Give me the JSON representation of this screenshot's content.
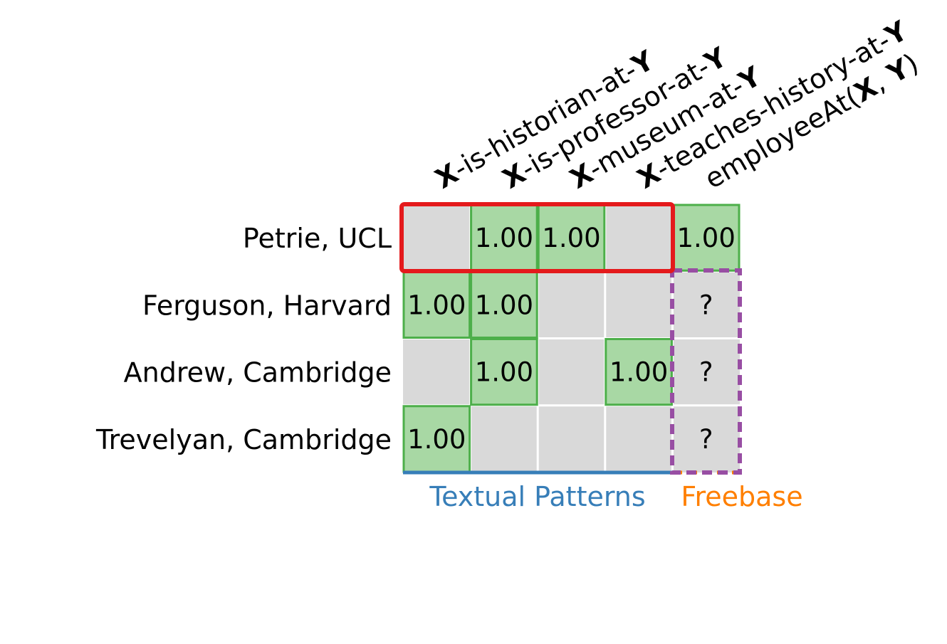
{
  "rows": [
    "Petrie, UCL",
    "Ferguson, Harvard",
    "Andrew, Cambridge",
    "Trevelyan, Cambridge"
  ],
  "columns": [
    {
      "x": "X",
      "rest": "-is-historian-at-",
      "y": "Y"
    },
    {
      "x": "X",
      "rest": "-is-professor-at-",
      "y": "Y"
    },
    {
      "x": "X",
      "rest": "-museum-at-",
      "y": "Y"
    },
    {
      "x": "X",
      "rest": "-teaches-history-at-",
      "y": "Y"
    },
    {
      "pre": "employeeAt(",
      "x": "X",
      "mid": ", ",
      "y": "Y",
      "post": ")"
    }
  ],
  "cells": [
    [
      "",
      "1.00",
      "1.00",
      "",
      "1.00"
    ],
    [
      "1.00",
      "1.00",
      "",
      "",
      "?"
    ],
    [
      "",
      "1.00",
      "",
      "1.00",
      "?"
    ],
    [
      "1.00",
      "",
      "",
      "",
      "?"
    ]
  ],
  "group_labels": {
    "textual": "Textual Patterns",
    "freebase": "Freebase"
  },
  "colors": {
    "cell_empty": "#d9d9d9",
    "cell_filled": "#a8d8a4",
    "cell_border": "#4daf4a",
    "highlight_row": "#e41a1c",
    "query_box": "#984ea3",
    "textual": "#377eb8",
    "freebase": "#ff7f00"
  }
}
